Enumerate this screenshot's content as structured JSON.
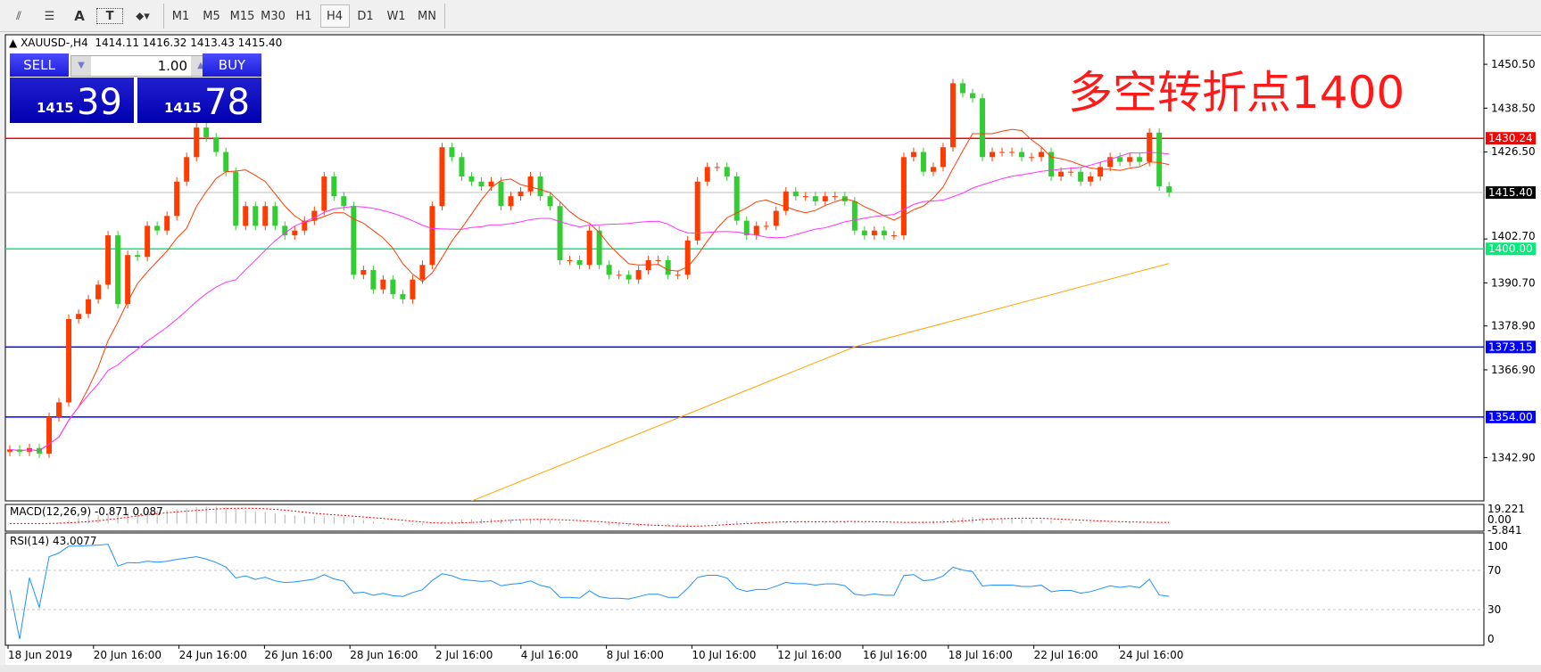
{
  "toolbar": {
    "tools": [
      "lines-tool-icon",
      "fibo-tool-icon",
      "text-tool-icon",
      "text-label-tool-icon",
      "arrows-tool-icon"
    ],
    "text_tool": "A",
    "timeframes": [
      "M1",
      "M5",
      "M15",
      "M30",
      "H1",
      "H4",
      "D1",
      "W1",
      "MN"
    ],
    "active_timeframe": "H4"
  },
  "chart_header": {
    "symbol": "XAUUSD-,H4",
    "ohlc": "1414.11 1416.32 1413.43 1415.40"
  },
  "trade_panel": {
    "sell_label": "SELL",
    "buy_label": "BUY",
    "lot": "1.00",
    "sell_small": "1415",
    "sell_big": "39",
    "buy_small": "1415",
    "buy_big": "78"
  },
  "annotation": "多空转折点1400",
  "colors": {
    "bull": "#ff3c00",
    "bear": "#33cc33",
    "ma_fast": "#ff3c00",
    "ma_mid": "#ff33ff",
    "ma_long": "#ffa500",
    "macd_hist": "#b0b0b0",
    "macd_signal": "#ff0000",
    "rsi": "#1e90ff"
  },
  "chart_data": {
    "type": "candlestick",
    "price_axis": {
      "min": 1331,
      "max": 1458.5,
      "ticks": [
        "1450.50",
        "1438.50",
        "1426.50",
        "1402.70",
        "1390.70",
        "1378.90",
        "1366.90",
        "1342.90"
      ]
    },
    "closes": [
      1345.1,
      1344.5,
      1345.5,
      1344.0,
      1354.0,
      1358.0,
      1380.8,
      1382.2,
      1386.2,
      1390.2,
      1403.7,
      1384.9,
      1398.3,
      1397.8,
      1406.3,
      1405.0,
      1409.0,
      1418.4,
      1425.1,
      1433.2,
      1430.5,
      1426.5,
      1421.1,
      1406.3,
      1411.7,
      1406.3,
      1411.7,
      1406.3,
      1403.7,
      1405.0,
      1407.7,
      1410.4,
      1419.8,
      1414.4,
      1411.7,
      1392.9,
      1394.2,
      1388.9,
      1391.6,
      1387.6,
      1386.2,
      1391.6,
      1395.6,
      1411.7,
      1427.8,
      1425.1,
      1419.8,
      1418.4,
      1417.1,
      1418.4,
      1411.7,
      1414.4,
      1415.7,
      1419.8,
      1414.4,
      1411.7,
      1396.9,
      1396.9,
      1395.6,
      1405.0,
      1395.6,
      1392.9,
      1392.9,
      1391.6,
      1394.2,
      1396.9,
      1396.9,
      1392.9,
      1392.9,
      1402.3,
      1418.4,
      1422.4,
      1422.4,
      1419.8,
      1407.7,
      1403.7,
      1406.3,
      1406.3,
      1410.4,
      1415.7,
      1414.4,
      1414.4,
      1413.0,
      1414.4,
      1414.4,
      1413.0,
      1405.0,
      1403.7,
      1405.0,
      1403.7,
      1403.7,
      1425.1,
      1426.5,
      1421.1,
      1422.4,
      1427.8,
      1445.3,
      1442.6,
      1441.2,
      1425.1,
      1426.5,
      1426.5,
      1426.5,
      1425.1,
      1425.1,
      1426.5,
      1419.8,
      1421.1,
      1421.1,
      1418.4,
      1419.8,
      1422.4,
      1425.1,
      1423.8,
      1425.1,
      1423.8,
      1431.8,
      1417.1,
      1415.4
    ],
    "ma_long_points": [
      [
        47,
        1331
      ],
      [
        86,
        1373.2
      ],
      [
        118,
        1396
      ]
    ],
    "hlines": [
      {
        "price": 1430.24,
        "label": "1430.24",
        "color": "#ff0000"
      },
      {
        "price": 1415.4,
        "label": "1415.40",
        "color": "#000000",
        "line": "#c0c0c0"
      },
      {
        "price": 1400.0,
        "label": "1400.00",
        "color": "#00ee77"
      },
      {
        "price": 1373.15,
        "label": "1373.15",
        "color": "#0000ff"
      },
      {
        "price": 1354.0,
        "label": "1354.00",
        "color": "#0000ff"
      }
    ],
    "macd": {
      "label": "MACD(12,26,9) -0.871 0.087",
      "max_label": "19.221",
      "zero_label": "0.00",
      "min_label": "-5.841",
      "max": 19.221,
      "min": -5.841
    },
    "rsi": {
      "label": "RSI(14) 43.0077",
      "levels": [
        "100",
        "70",
        "30",
        "0"
      ]
    },
    "x_labels": [
      "18 Jun 2019",
      "20 Jun 16:00",
      "24 Jun 16:00",
      "26 Jun 16:00",
      "28 Jun 16:00",
      "2 Jul 16:00",
      "4 Jul 16:00",
      "8 Jul 16:00",
      "10 Jul 16:00",
      "12 Jul 16:00",
      "16 Jul 16:00",
      "18 Jul 16:00",
      "22 Jul 16:00",
      "24 Jul 16:00"
    ]
  }
}
